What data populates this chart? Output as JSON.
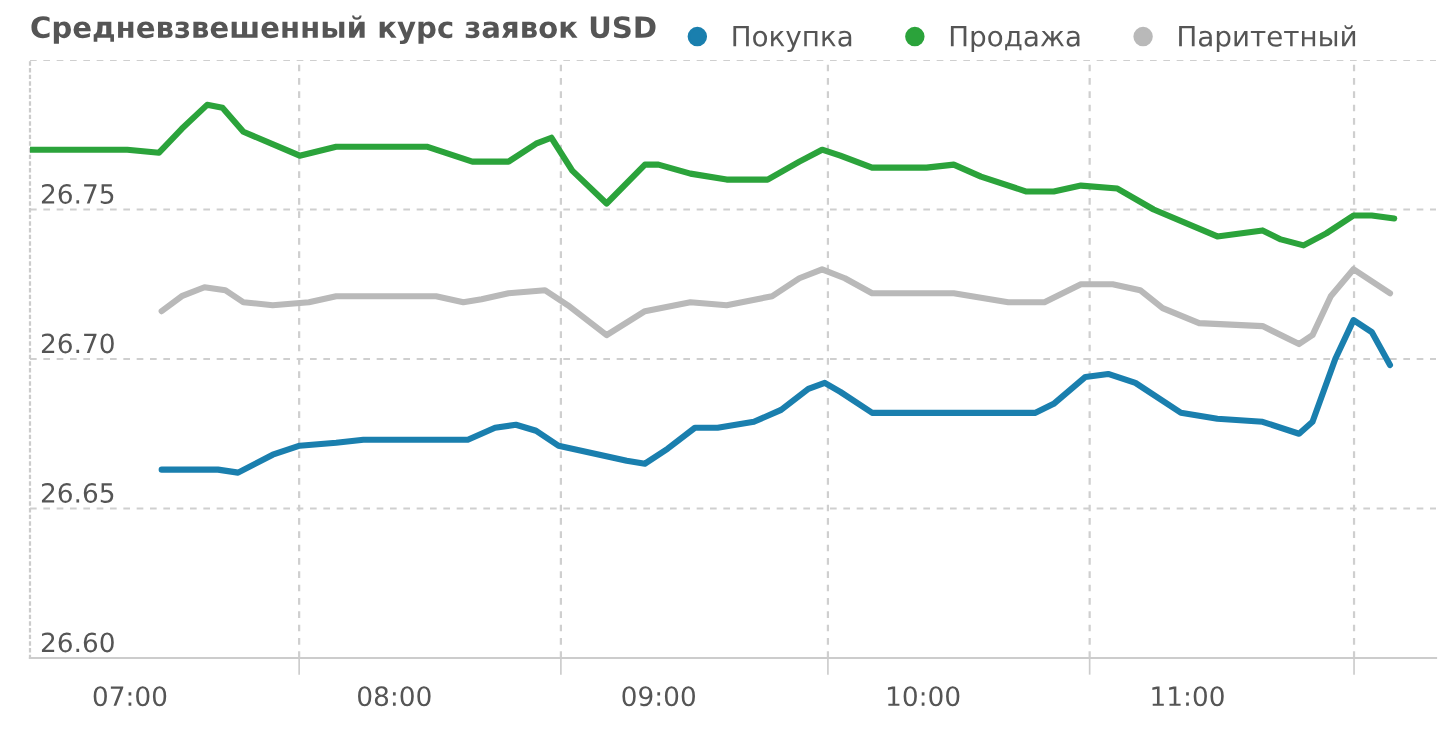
{
  "chart_data": {
    "type": "line",
    "title": "Средневзвешенный курс заявок USD",
    "series": [
      {
        "name": "Покупка",
        "color": "#1a7fae",
        "x": [
          7.12,
          7.333,
          7.409,
          7.54,
          7.642,
          7.78,
          7.883,
          8.278,
          8.381,
          8.46,
          8.536,
          8.621,
          8.776,
          8.879,
          8.948,
          9.034,
          9.137,
          9.223,
          9.36,
          9.463,
          9.566,
          9.628,
          9.687,
          9.807,
          10.219,
          10.288,
          10.425,
          10.494,
          10.614,
          10.7,
          10.803,
          10.975,
          11.113,
          11.284,
          11.422,
          11.473,
          11.559,
          11.628,
          11.697,
          11.766
        ],
        "values": [
          26.663,
          26.663,
          26.662,
          26.668,
          26.671,
          26.672,
          26.673,
          26.673,
          26.677,
          26.678,
          26.676,
          26.671,
          26.668,
          26.666,
          26.665,
          26.67,
          26.677,
          26.677,
          26.679,
          26.683,
          26.69,
          26.692,
          26.689,
          26.682,
          26.682,
          26.682,
          26.682,
          26.685,
          26.694,
          26.695,
          26.692,
          26.682,
          26.68,
          26.679,
          26.675,
          26.679,
          26.7,
          26.713,
          26.709,
          26.698
        ]
      },
      {
        "name": "Продажа",
        "color": "#2ba33b",
        "x": [
          6.622,
          6.99,
          7.11,
          7.196,
          7.292,
          7.35,
          7.429,
          7.642,
          7.78,
          8.123,
          8.295,
          8.432,
          8.536,
          8.594,
          8.673,
          8.803,
          8.948,
          8.999,
          9.12,
          9.257,
          9.412,
          9.532,
          9.618,
          9.687,
          9.807,
          10.013,
          10.116,
          10.219,
          10.391,
          10.494,
          10.597,
          10.735,
          10.872,
          11.113,
          11.284,
          11.353,
          11.439,
          11.525,
          11.628,
          11.697,
          11.782
        ],
        "values": [
          26.77,
          26.77,
          26.769,
          26.777,
          26.785,
          26.784,
          26.776,
          26.768,
          26.771,
          26.771,
          26.766,
          26.766,
          26.772,
          26.774,
          26.763,
          26.752,
          26.765,
          26.765,
          26.762,
          26.76,
          26.76,
          26.766,
          26.77,
          26.768,
          26.764,
          26.764,
          26.765,
          26.761,
          26.756,
          26.756,
          26.758,
          26.757,
          26.75,
          26.741,
          26.743,
          26.74,
          26.738,
          26.742,
          26.748,
          26.748,
          26.747
        ]
      },
      {
        "name": "Паритетный",
        "color": "#b9b9b9",
        "x": [
          7.12,
          7.196,
          7.282,
          7.361,
          7.429,
          7.54,
          7.677,
          7.78,
          8.158,
          8.261,
          8.33,
          8.432,
          8.57,
          8.656,
          8.803,
          8.948,
          9.12,
          9.257,
          9.429,
          9.532,
          9.618,
          9.704,
          9.807,
          10.116,
          10.322,
          10.459,
          10.597,
          10.717,
          10.821,
          10.906,
          11.044,
          11.284,
          11.422,
          11.473,
          11.542,
          11.628,
          11.697,
          11.766
        ],
        "values": [
          26.716,
          26.721,
          26.724,
          26.723,
          26.719,
          26.718,
          26.719,
          26.721,
          26.721,
          26.719,
          26.72,
          26.722,
          26.723,
          26.718,
          26.708,
          26.716,
          26.719,
          26.718,
          26.721,
          26.727,
          26.73,
          26.727,
          26.722,
          26.722,
          26.719,
          26.719,
          26.725,
          26.725,
          26.723,
          26.717,
          26.712,
          26.711,
          26.705,
          26.708,
          26.721,
          26.73,
          26.726,
          26.722
        ]
      }
    ],
    "xlim": [
      6.622,
      11.94
    ],
    "xticks": [
      {
        "value": 7,
        "label": "07:00"
      },
      {
        "value": 7.64,
        "label": null
      },
      {
        "value": 8,
        "label": "08:00"
      },
      {
        "value": 8.63,
        "label": null
      },
      {
        "value": 9,
        "label": "09:00"
      },
      {
        "value": 9.64,
        "label": null
      },
      {
        "value": 10,
        "label": "10:00"
      },
      {
        "value": 10.63,
        "label": null
      },
      {
        "value": 11,
        "label": "11:00"
      },
      {
        "value": 11.63,
        "label": null
      }
    ],
    "ylim": [
      26.6,
      26.8
    ],
    "yticks": [
      {
        "value": 26.6,
        "label": "26.60"
      },
      {
        "value": 26.65,
        "label": "26.65"
      },
      {
        "value": 26.7,
        "label": "26.70"
      },
      {
        "value": 26.75,
        "label": "26.75"
      },
      {
        "value": 26.8,
        "label": null
      }
    ],
    "grid": true,
    "legend": "top"
  }
}
